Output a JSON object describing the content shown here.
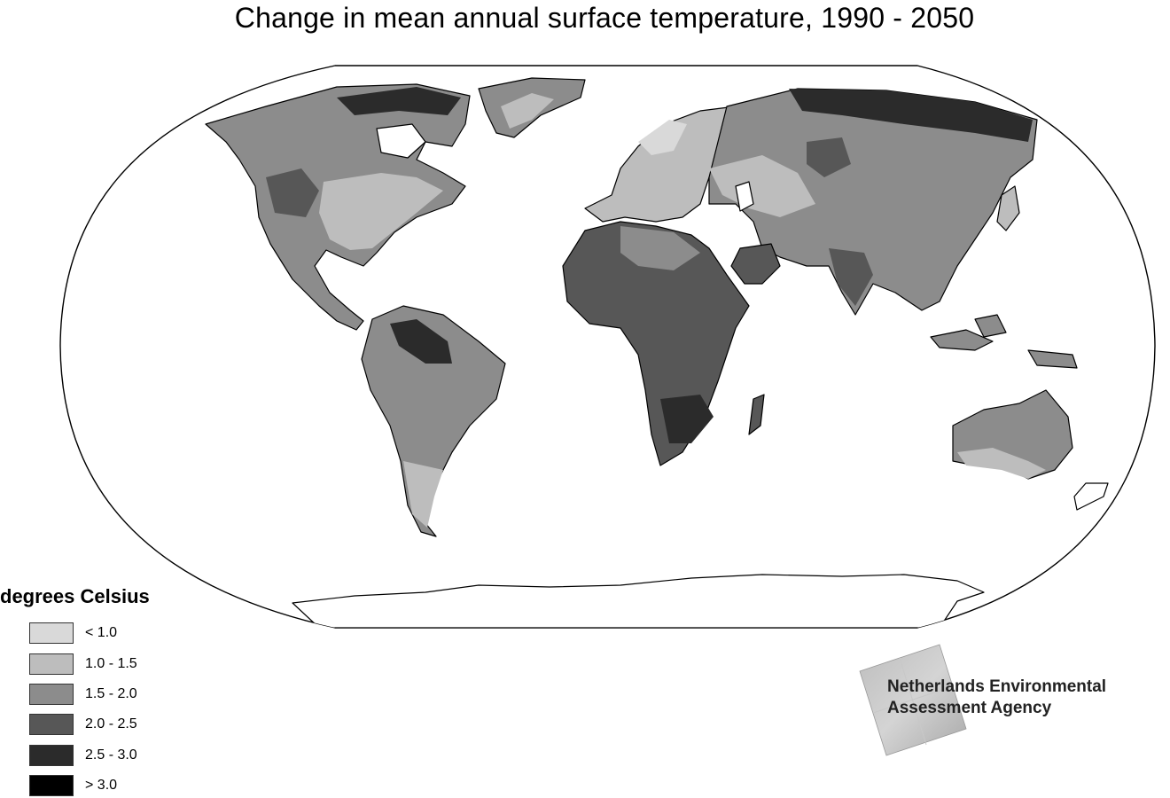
{
  "title": "Change in mean annual surface temperature, 1990 - 2050",
  "legend": {
    "title": "degrees Celsius",
    "items": [
      {
        "label": "< 1.0",
        "color": "#d9d9d9"
      },
      {
        "label": "1.0 - 1.5",
        "color": "#bdbdbd"
      },
      {
        "label": "1.5 - 2.0",
        "color": "#8c8c8c"
      },
      {
        "label": "2.0 - 2.5",
        "color": "#575757"
      },
      {
        "label": "2.5 - 3.0",
        "color": "#2b2b2b"
      },
      {
        "label": "> 3.0",
        "color": "#000000"
      }
    ]
  },
  "agency": {
    "line1": "Netherlands Environmental",
    "line2": "Assessment Agency"
  },
  "map": {
    "projection": "Robinson-like world map",
    "ocean_color": "#ffffff",
    "outline_color": "#000000"
  }
}
